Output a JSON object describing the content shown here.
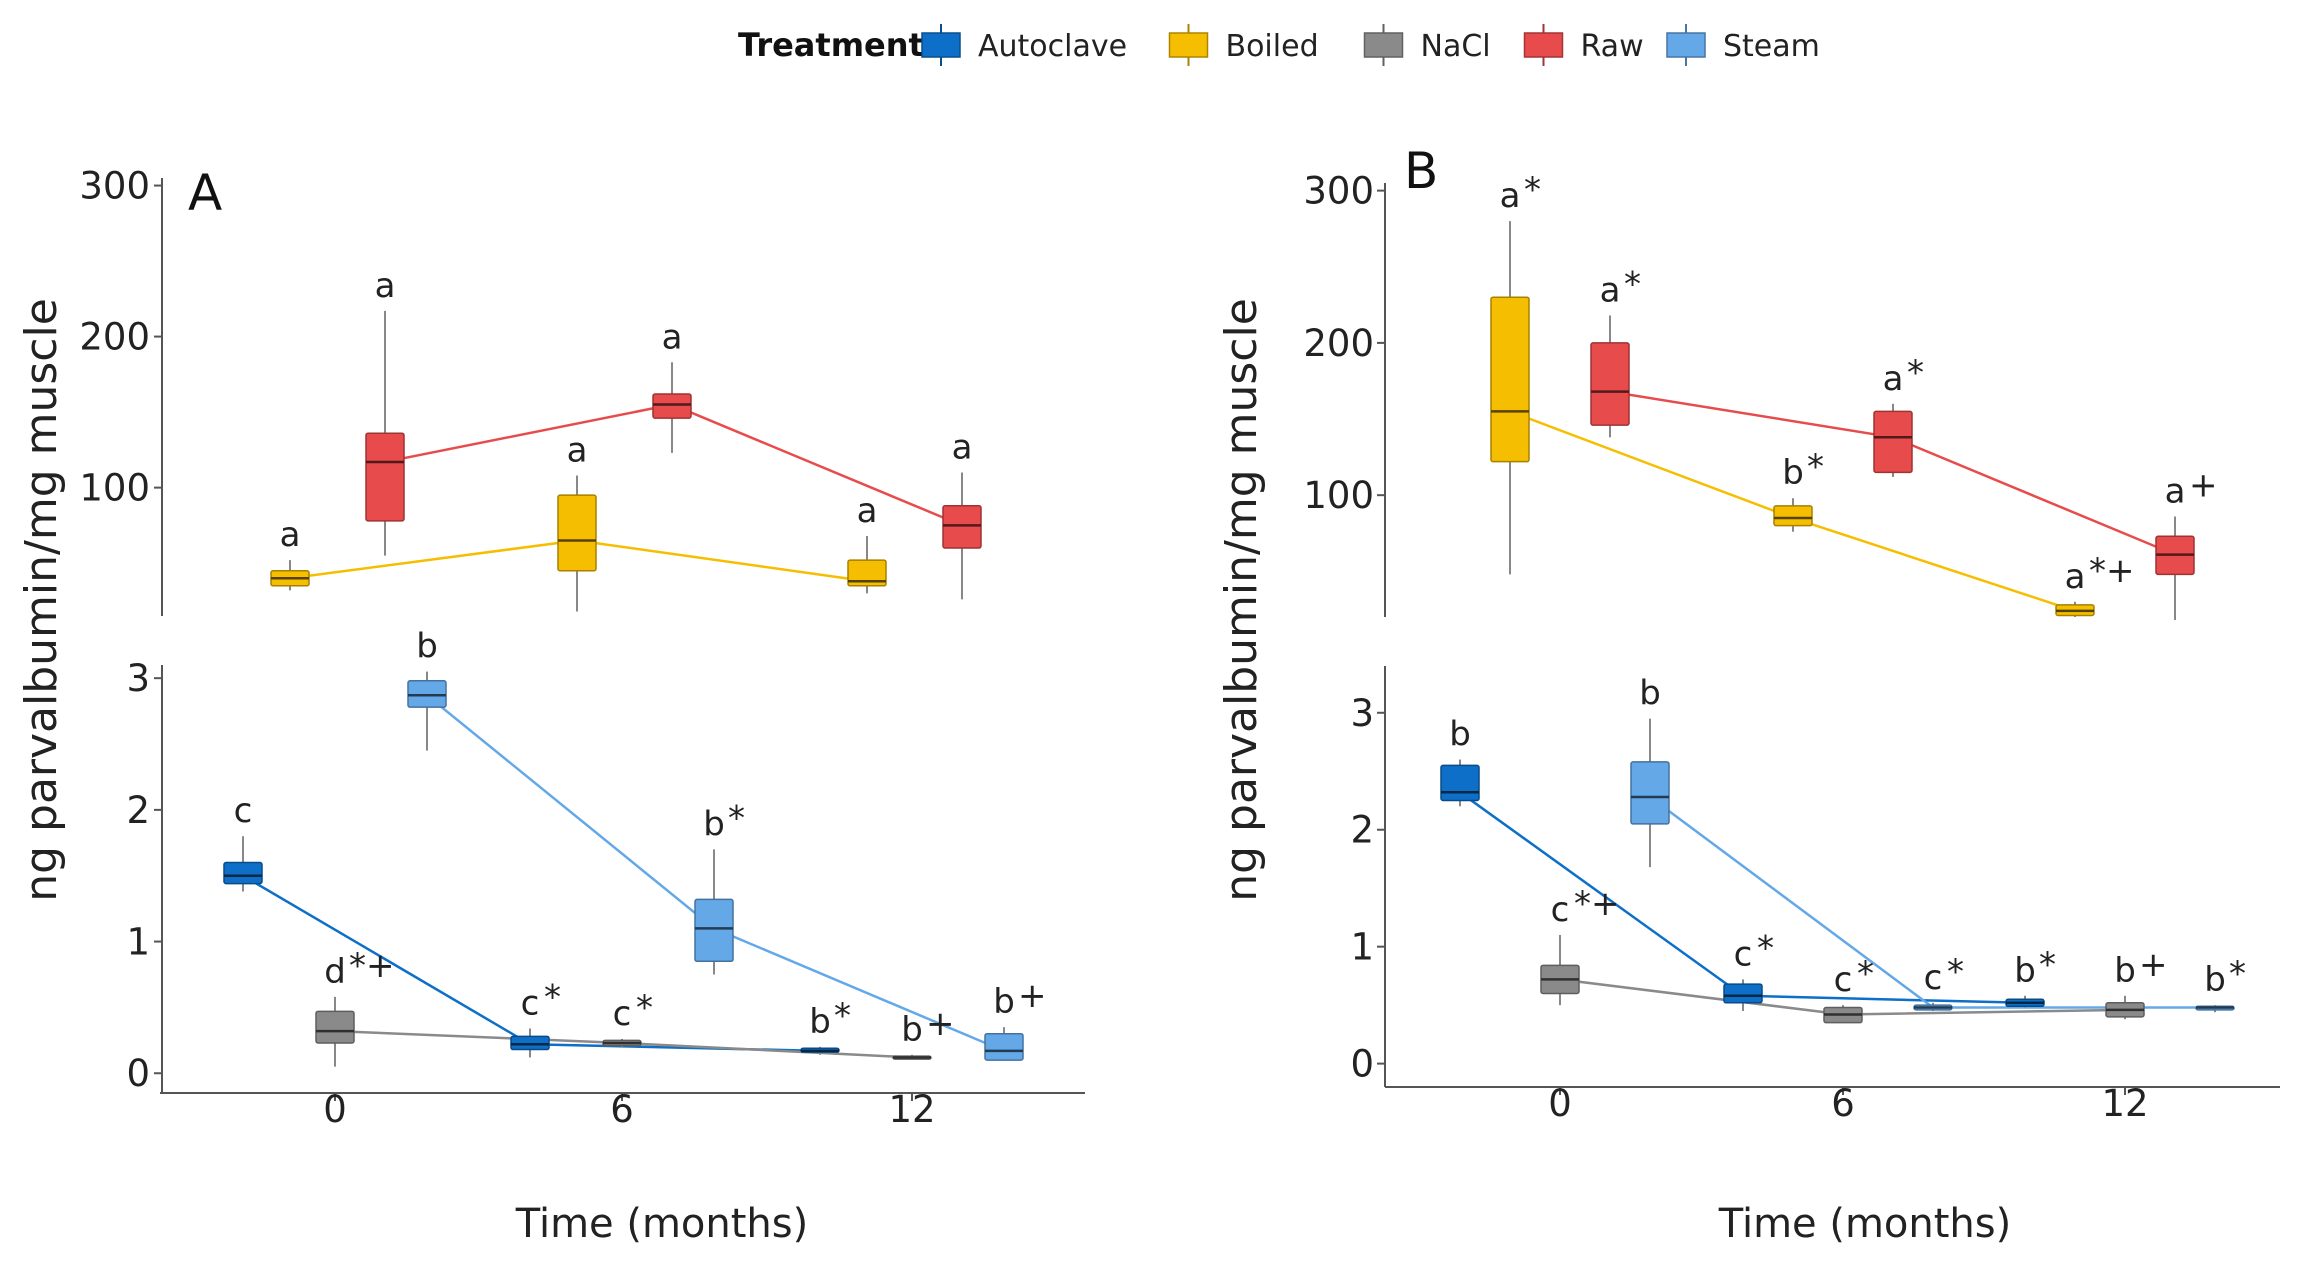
{
  "legend": {
    "title": "Treatment",
    "items": [
      {
        "name": "Autoclave",
        "color": "#0D6FC7"
      },
      {
        "name": "Boiled",
        "color": "#F6BE00"
      },
      {
        "name": "NaCl",
        "color": "#8A8A8A"
      },
      {
        "name": "Raw",
        "color": "#E84B4B"
      },
      {
        "name": "Steam",
        "color": "#64A8E8"
      }
    ]
  },
  "chart_data": [
    {
      "type": "box",
      "panel": "A",
      "ylabel": "ng parvalbumin/mg muscle",
      "xlabel": "Time (months)",
      "x_ticks": [
        0,
        6,
        12
      ],
      "segments": [
        {
          "name": "upper",
          "yticks": [
            100,
            200,
            300
          ],
          "ylim": [
            15,
            305
          ],
          "series": [
            {
              "name": "Boiled",
              "color": "#F6BE00",
              "boxes": [
                {
                  "x": 0,
                  "min": 32,
                  "q1": 35,
                  "median": 40,
                  "q3": 45,
                  "max": 52,
                  "label": "a",
                  "marks": ""
                },
                {
                  "x": 6,
                  "min": 18,
                  "q1": 45,
                  "median": 65,
                  "q3": 95,
                  "max": 108,
                  "label": "a",
                  "marks": ""
                },
                {
                  "x": 12,
                  "min": 30,
                  "q1": 35,
                  "median": 38,
                  "q3": 52,
                  "max": 68,
                  "label": "a",
                  "marks": ""
                }
              ]
            },
            {
              "name": "Raw",
              "color": "#E84B4B",
              "boxes": [
                {
                  "x": 0,
                  "min": 55,
                  "q1": 78,
                  "median": 117,
                  "q3": 136,
                  "max": 217,
                  "label": "a",
                  "marks": ""
                },
                {
                  "x": 6,
                  "min": 123,
                  "q1": 146,
                  "median": 155,
                  "q3": 162,
                  "max": 183,
                  "label": "a",
                  "marks": ""
                },
                {
                  "x": 12,
                  "min": 26,
                  "q1": 60,
                  "median": 75,
                  "q3": 88,
                  "max": 110,
                  "label": "a",
                  "marks": ""
                }
              ]
            }
          ]
        },
        {
          "name": "lower",
          "yticks": [
            0,
            1,
            2,
            3
          ],
          "ylim": [
            -0.15,
            3.1
          ],
          "series": [
            {
              "name": "Autoclave",
              "color": "#0D6FC7",
              "boxes": [
                {
                  "x": 0,
                  "min": 1.38,
                  "q1": 1.44,
                  "median": 1.5,
                  "q3": 1.6,
                  "max": 1.8,
                  "label": "c",
                  "marks": ""
                },
                {
                  "x": 6,
                  "min": 0.12,
                  "q1": 0.18,
                  "median": 0.22,
                  "q3": 0.28,
                  "max": 0.34,
                  "label": "c",
                  "marks": "*"
                },
                {
                  "x": 12,
                  "min": 0.14,
                  "q1": 0.16,
                  "median": 0.17,
                  "q3": 0.19,
                  "max": 0.2,
                  "label": "b",
                  "marks": "*"
                }
              ]
            },
            {
              "name": "NaCl",
              "color": "#8A8A8A",
              "boxes": [
                {
                  "x": 0,
                  "min": 0.05,
                  "q1": 0.23,
                  "median": 0.32,
                  "q3": 0.47,
                  "max": 0.58,
                  "label": "d",
                  "marks": "*+"
                },
                {
                  "x": 6,
                  "min": 0.2,
                  "q1": 0.21,
                  "median": 0.23,
                  "q3": 0.25,
                  "max": 0.26,
                  "label": "c",
                  "marks": "*"
                },
                {
                  "x": 12,
                  "min": 0.11,
                  "q1": 0.12,
                  "median": 0.12,
                  "q3": 0.13,
                  "max": 0.14,
                  "label": "b",
                  "marks": "+"
                }
              ]
            },
            {
              "name": "Steam",
              "color": "#64A8E8",
              "boxes": [
                {
                  "x": 0,
                  "min": 2.45,
                  "q1": 2.78,
                  "median": 2.87,
                  "q3": 2.98,
                  "max": 3.05,
                  "label": "b",
                  "marks": ""
                },
                {
                  "x": 6,
                  "min": 0.75,
                  "q1": 0.85,
                  "median": 1.1,
                  "q3": 1.32,
                  "max": 1.7,
                  "label": "b",
                  "marks": "*"
                },
                {
                  "x": 12,
                  "min": 0.1,
                  "q1": 0.1,
                  "median": 0.17,
                  "q3": 0.3,
                  "max": 0.35,
                  "label": "b",
                  "marks": "+"
                }
              ]
            }
          ]
        }
      ]
    },
    {
      "type": "box",
      "panel": "B",
      "ylabel": "ng parvalbumin/mg muscle",
      "xlabel": "Time (months)",
      "x_ticks": [
        0,
        6,
        12
      ],
      "segments": [
        {
          "name": "upper",
          "yticks": [
            100,
            200,
            300
          ],
          "ylim": [
            20,
            305
          ],
          "series": [
            {
              "name": "Boiled",
              "color": "#F6BE00",
              "boxes": [
                {
                  "x": 0,
                  "min": 48,
                  "q1": 122,
                  "median": 155,
                  "q3": 230,
                  "max": 280,
                  "label": "a",
                  "marks": "*"
                },
                {
                  "x": 6,
                  "min": 76,
                  "q1": 80,
                  "median": 85,
                  "q3": 93,
                  "max": 98,
                  "label": "b",
                  "marks": "*"
                },
                {
                  "x": 12,
                  "min": 20,
                  "q1": 21,
                  "median": 24,
                  "q3": 28,
                  "max": 30,
                  "label": "a",
                  "marks": "*+"
                }
              ]
            },
            {
              "name": "Raw",
              "color": "#E84B4B",
              "boxes": [
                {
                  "x": 0,
                  "min": 138,
                  "q1": 146,
                  "median": 168,
                  "q3": 200,
                  "max": 218,
                  "label": "a",
                  "marks": "*"
                },
                {
                  "x": 6,
                  "min": 112,
                  "q1": 115,
                  "median": 138,
                  "q3": 155,
                  "max": 160,
                  "label": "a",
                  "marks": "*"
                },
                {
                  "x": 12,
                  "min": 18,
                  "q1": 48,
                  "median": 61,
                  "q3": 73,
                  "max": 86,
                  "label": "a",
                  "marks": "+"
                }
              ]
            }
          ]
        },
        {
          "name": "lower",
          "yticks": [
            0,
            1,
            2,
            3
          ],
          "ylim": [
            -0.2,
            3.4
          ],
          "series": [
            {
              "name": "Autoclave",
              "color": "#0D6FC7",
              "boxes": [
                {
                  "x": 0,
                  "min": 2.2,
                  "q1": 2.25,
                  "median": 2.32,
                  "q3": 2.55,
                  "max": 2.6,
                  "label": "b",
                  "marks": ""
                },
                {
                  "x": 6,
                  "min": 0.45,
                  "q1": 0.52,
                  "median": 0.58,
                  "q3": 0.68,
                  "max": 0.72,
                  "label": "c",
                  "marks": "*"
                },
                {
                  "x": 12,
                  "min": 0.48,
                  "q1": 0.49,
                  "median": 0.52,
                  "q3": 0.55,
                  "max": 0.58,
                  "label": "b",
                  "marks": "*"
                }
              ]
            },
            {
              "name": "NaCl",
              "color": "#8A8A8A",
              "boxes": [
                {
                  "x": 0,
                  "min": 0.5,
                  "q1": 0.6,
                  "median": 0.72,
                  "q3": 0.84,
                  "max": 1.1,
                  "label": "c",
                  "marks": "*+"
                },
                {
                  "x": 6,
                  "min": 0.35,
                  "q1": 0.35,
                  "median": 0.42,
                  "q3": 0.48,
                  "max": 0.5,
                  "label": "c",
                  "marks": "*"
                },
                {
                  "x": 12,
                  "min": 0.38,
                  "q1": 0.4,
                  "median": 0.46,
                  "q3": 0.52,
                  "max": 0.58,
                  "label": "b",
                  "marks": "+"
                }
              ]
            },
            {
              "name": "Steam",
              "color": "#64A8E8",
              "boxes": [
                {
                  "x": 0,
                  "min": 1.68,
                  "q1": 2.05,
                  "median": 2.28,
                  "q3": 2.58,
                  "max": 2.95,
                  "label": "b",
                  "marks": ""
                },
                {
                  "x": 6,
                  "min": 0.45,
                  "q1": 0.46,
                  "median": 0.48,
                  "q3": 0.5,
                  "max": 0.52,
                  "label": "c",
                  "marks": "*"
                },
                {
                  "x": 12,
                  "min": 0.44,
                  "q1": 0.46,
                  "median": 0.48,
                  "q3": 0.49,
                  "max": 0.5,
                  "label": "b",
                  "marks": "*"
                }
              ]
            }
          ]
        }
      ]
    }
  ]
}
